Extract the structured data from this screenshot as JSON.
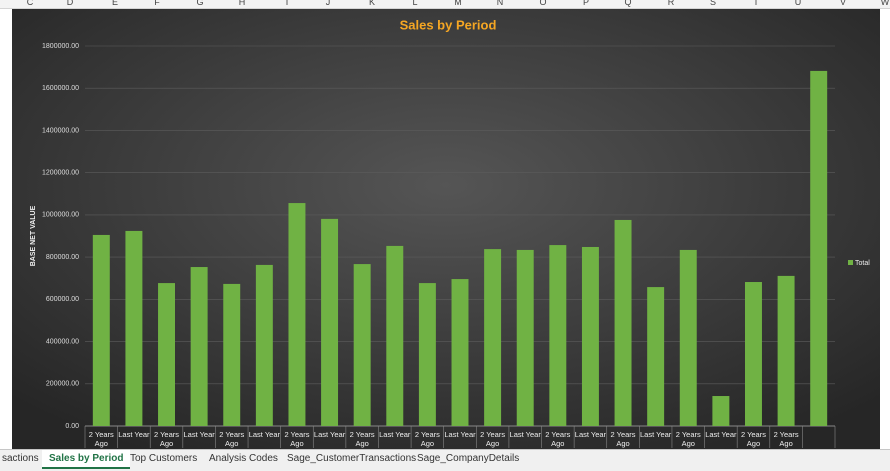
{
  "chart_data": {
    "type": "bar",
    "title": "Sales by Period",
    "y_label": "BASE NET VALUE",
    "categories": [
      "2 Years Ago",
      "Last Year",
      "2 Years Ago",
      "Last Year",
      "2 Years Ago",
      "Last Year",
      "2 Years Ago",
      "Last Year",
      "2 Years Ago",
      "Last Year",
      "2 Years Ago",
      "Last Year",
      "2 Years Ago",
      "Last Year",
      "2 Years Ago",
      "Last Year",
      "2 Years Ago",
      "Last Year",
      "2 Years Ago",
      "Last Year",
      "2 Years Ago",
      "2 Years Ago",
      null
    ],
    "series": [
      {
        "name": "Total",
        "color": "#70b244",
        "values": [
          905000,
          924000,
          677000,
          753000,
          673000,
          763000,
          1056000,
          981000,
          767000,
          853000,
          677000,
          696000,
          838000,
          834000,
          857000,
          848000,
          976000,
          658000,
          834000,
          142000,
          682000,
          711000,
          1682000
        ]
      }
    ],
    "ylim": [
      0,
      1800000
    ],
    "yticks": [
      {
        "value": 0,
        "label": "0.00"
      },
      {
        "value": 200000,
        "label": "200000.00"
      },
      {
        "value": 400000,
        "label": "400000.00"
      },
      {
        "value": 600000,
        "label": "600000.00"
      },
      {
        "value": 800000,
        "label": "800000.00"
      },
      {
        "value": 1000000,
        "label": "1000000.00"
      },
      {
        "value": 1200000,
        "label": "1200000.00"
      },
      {
        "value": 1400000,
        "label": "1400000.00"
      },
      {
        "value": 1600000,
        "label": "1600000.00"
      },
      {
        "value": 1800000,
        "label": "1800000.00"
      }
    ],
    "grid": true,
    "legend": "right"
  },
  "columns": [
    "C",
    "D",
    "E",
    "F",
    "G",
    "H",
    "I",
    "J",
    "K",
    "L",
    "M",
    "N",
    "O",
    "P",
    "Q",
    "R",
    "S",
    "T",
    "U",
    "V",
    "W"
  ],
  "tabs": {
    "items": [
      "sactions",
      "Sales by Period",
      "Top Customers",
      "Analysis Codes",
      "Sage_CustomerTransactions",
      "Sage_CompanyDetails"
    ],
    "active": 1
  }
}
